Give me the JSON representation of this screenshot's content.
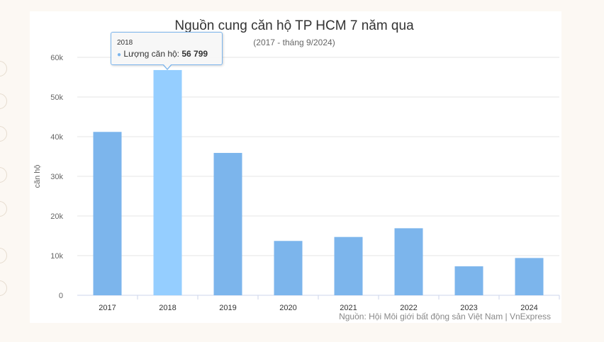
{
  "chart_data": {
    "type": "bar",
    "title": "Nguồn cung căn hộ TP HCM 7 năm qua",
    "subtitle": "(2017 - tháng 9/2024)",
    "ylabel": "căn hộ",
    "xlabel": "",
    "categories": [
      "2017",
      "2018",
      "2019",
      "2020",
      "2021",
      "2022",
      "2023",
      "2024"
    ],
    "series": [
      {
        "name": "Lượng căn hộ",
        "values": [
          41200,
          56799,
          35900,
          13700,
          14700,
          16900,
          7300,
          9400
        ],
        "color": "#7cb5ec",
        "highlight_color": "#95ceff"
      }
    ],
    "ylim": [
      0,
      60000
    ],
    "yticks": [
      "0",
      "10k",
      "20k",
      "30k",
      "40k",
      "50k",
      "60k"
    ],
    "grid": true,
    "legend": "none",
    "highlighted_index": 1,
    "tooltip": {
      "category": "2018",
      "label": "Lượng căn hộ:",
      "value": "56 799"
    },
    "credits": "Nguồn: Hội Môi giới bất động sản Việt Nam | VnExpress"
  }
}
